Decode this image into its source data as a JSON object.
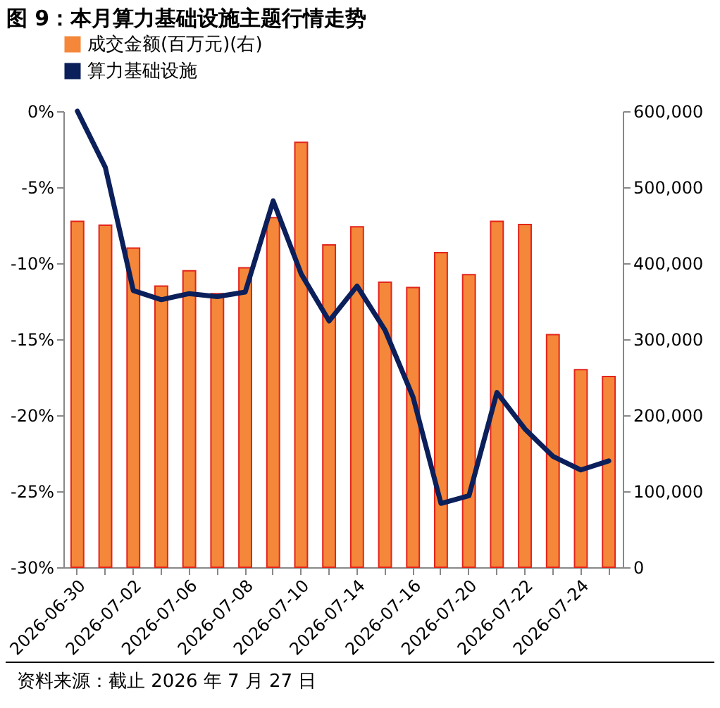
{
  "chart_data": {
    "type": "bar",
    "title": "图 9：本月算力基础设施主题行情走势",
    "categories": [
      "2026-06-30",
      null,
      "2026-07-02",
      null,
      "2026-07-06",
      null,
      "2026-07-08",
      null,
      "2026-07-10",
      null,
      "2026-07-14",
      null,
      "2026-07-16",
      null,
      "2026-07-20",
      null,
      "2026-07-22",
      null,
      "2026-07-24",
      null
    ],
    "series": [
      {
        "name": "成交金额(百万元)(右)",
        "axis": "y2",
        "color": "#f4873a",
        "values": [
          455000,
          450000,
          420000,
          370000,
          390000,
          360000,
          394000,
          460000,
          559000,
          424000,
          448000,
          375000,
          368000,
          414000,
          385000,
          455000,
          451000,
          306000,
          260000,
          251000
        ]
      },
      {
        "name": "算力基础设施",
        "type": "line",
        "color": "#0b1f5b",
        "values": [
          0,
          -3.7,
          -11.8,
          -12.4,
          -12.0,
          -12.2,
          -11.9,
          -5.9,
          -10.7,
          -13.8,
          -11.5,
          -14.4,
          -18.8,
          -25.8,
          -25.3,
          -18.5,
          -20.9,
          -22.7,
          -23.6,
          -23.0
        ]
      }
    ],
    "ylim": [
      -30,
      0
    ],
    "yticks": [
      {
        "value": -30,
        "label": "-30%"
      },
      {
        "value": -25,
        "label": "-25%"
      },
      {
        "value": -20,
        "label": "-20%"
      },
      {
        "value": -15,
        "label": "-15%"
      },
      {
        "value": -10,
        "label": "-10%"
      },
      {
        "value": -5,
        "label": "-5%"
      },
      {
        "value": 0,
        "label": "0%"
      }
    ],
    "y2lim": [
      0,
      600000
    ],
    "y2ticks": [
      0,
      {
        "value": 100000,
        "label": "100,000"
      },
      {
        "value": 200000,
        "label": "200,000"
      },
      {
        "value": 300000,
        "label": "300,000"
      },
      {
        "value": 400000,
        "label": "400,000"
      },
      {
        "value": 500000,
        "label": "500,000"
      },
      {
        "value": 600000,
        "label": "600,000"
      }
    ],
    "legend": "top",
    "annotations": [
      "资料来源：截止 2026 年 7 月 27 日"
    ]
  }
}
